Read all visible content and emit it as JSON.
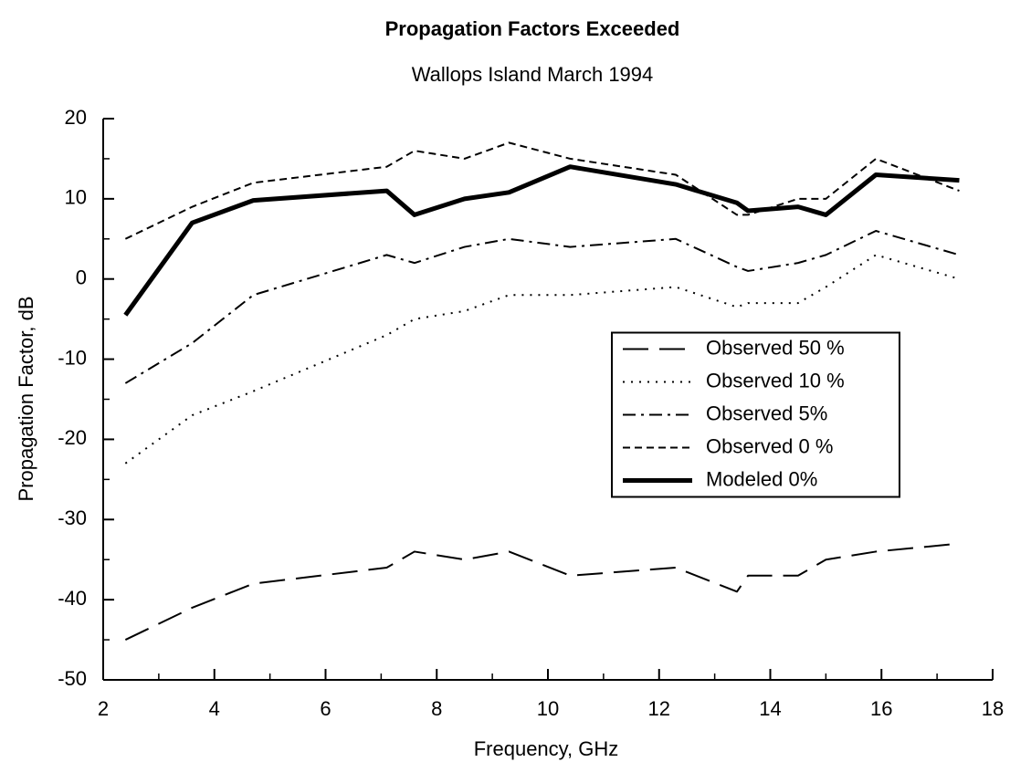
{
  "chart_data": {
    "type": "line",
    "title": "Propagation Factors Exceeded",
    "subtitle": "Wallops Island March 1994",
    "x_label": "Frequency, GHz",
    "y_label": "Propagation Factor, dB",
    "x": [
      2.4,
      3.6,
      4.7,
      7.1,
      7.6,
      8.5,
      9.3,
      10.4,
      12.3,
      13.4,
      13.6,
      14.5,
      15.0,
      15.9,
      17.4
    ],
    "series": [
      {
        "name": "Observed 50 %",
        "color": "#000000",
        "dash": "long-dash",
        "values": [
          -45,
          -41,
          -38,
          -36,
          -34,
          -35,
          -34,
          -37,
          -36,
          -39,
          -37,
          -37,
          -35,
          -34,
          -33
        ]
      },
      {
        "name": "Observed 10 %",
        "color": "#000000",
        "dash": "dotted",
        "values": [
          -23,
          -17,
          -14,
          -7,
          -5,
          -4,
          -2,
          -2,
          -1,
          -3.5,
          -3,
          -3,
          -1,
          3,
          0
        ]
      },
      {
        "name": "Observed 5%",
        "color": "#000000",
        "dash": "dash-dot",
        "values": [
          -13,
          -8,
          -2,
          3,
          2,
          4,
          5,
          4,
          5,
          1.5,
          1,
          2,
          3,
          6,
          3
        ]
      },
      {
        "name": "Observed 0 %",
        "color": "#000000",
        "dash": "short-dash",
        "values": [
          5,
          9,
          12,
          14,
          16,
          15,
          17,
          15,
          13,
          8,
          8,
          10,
          10,
          15,
          11
        ]
      },
      {
        "name": "Modeled 0%",
        "color": "#000000",
        "dash": "solid",
        "values": [
          -4.5,
          7,
          9.8,
          11,
          8,
          10,
          10.8,
          14,
          11.8,
          9.5,
          8.5,
          9,
          8,
          13,
          12.3
        ]
      }
    ],
    "xlim": [
      2,
      18
    ],
    "ylim": [
      -50,
      20
    ],
    "xticks": [
      2,
      4,
      6,
      8,
      10,
      12,
      14,
      16,
      18
    ],
    "xminorticks": [
      3,
      5,
      7,
      9,
      11,
      13,
      15,
      17
    ],
    "yticks": [
      -50,
      -40,
      -30,
      -20,
      -10,
      0,
      10,
      20
    ],
    "yminorticks": [
      -45,
      -35,
      -25,
      -15,
      -5,
      5,
      15
    ],
    "grid": false,
    "legend": "center-right"
  }
}
